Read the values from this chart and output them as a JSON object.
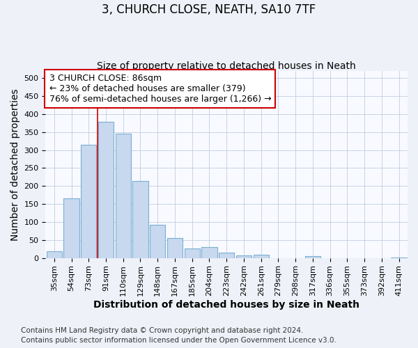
{
  "title": "3, CHURCH CLOSE, NEATH, SA10 7TF",
  "subtitle": "Size of property relative to detached houses in Neath",
  "xlabel": "Distribution of detached houses by size in Neath",
  "ylabel": "Number of detached properties",
  "bar_labels": [
    "35sqm",
    "54sqm",
    "73sqm",
    "91sqm",
    "110sqm",
    "129sqm",
    "148sqm",
    "167sqm",
    "185sqm",
    "204sqm",
    "223sqm",
    "242sqm",
    "261sqm",
    "279sqm",
    "298sqm",
    "317sqm",
    "336sqm",
    "355sqm",
    "373sqm",
    "392sqm",
    "411sqm"
  ],
  "bar_values": [
    18,
    165,
    315,
    378,
    345,
    215,
    93,
    56,
    27,
    30,
    15,
    7,
    8,
    0,
    0,
    5,
    0,
    0,
    0,
    0,
    2
  ],
  "bar_color": "#c8d8ee",
  "bar_edge_color": "#7aafd4",
  "vline_x": 2.5,
  "vline_color": "#cc0000",
  "annotation_line1": "3 CHURCH CLOSE: 86sqm",
  "annotation_line2": "← 23% of detached houses are smaller (379)",
  "annotation_line3": "76% of semi-detached houses are larger (1,266) →",
  "annotation_box_color": "#cc0000",
  "ylim": [
    0,
    520
  ],
  "yticks": [
    0,
    50,
    100,
    150,
    200,
    250,
    300,
    350,
    400,
    450,
    500
  ],
  "footer_line1": "Contains HM Land Registry data © Crown copyright and database right 2024.",
  "footer_line2": "Contains public sector information licensed under the Open Government Licence v3.0.",
  "background_color": "#eef2f8",
  "plot_bg_color": "#f8faff",
  "title_fontsize": 12,
  "subtitle_fontsize": 10,
  "axis_label_fontsize": 10,
  "tick_fontsize": 8,
  "annotation_fontsize": 9,
  "footer_fontsize": 7.5
}
